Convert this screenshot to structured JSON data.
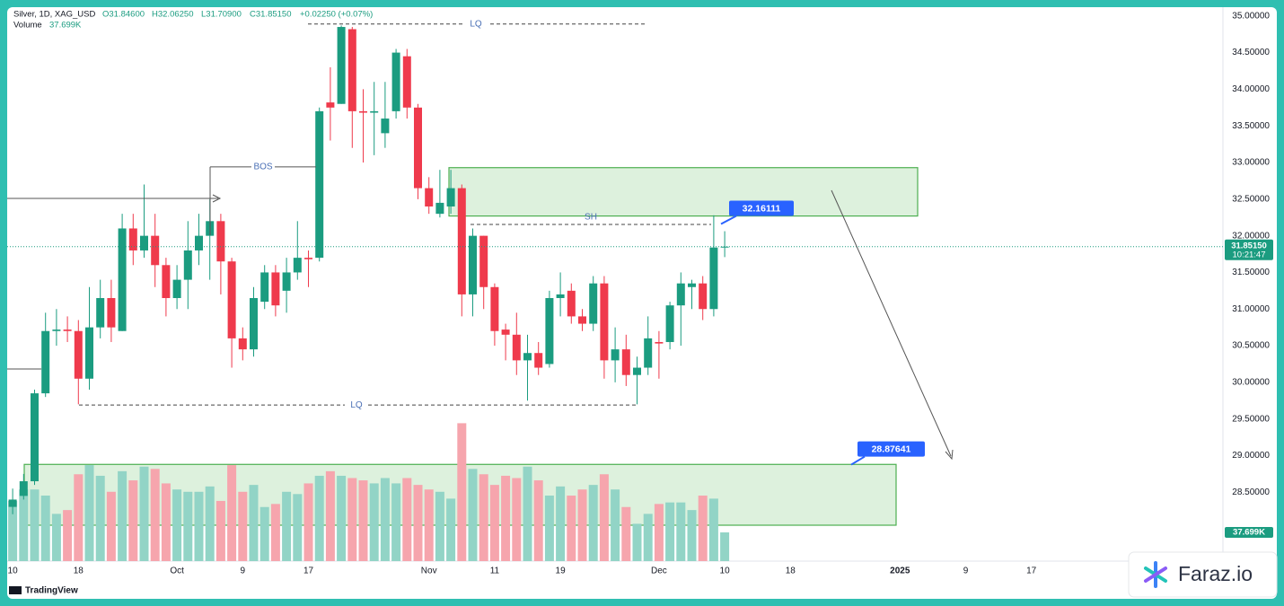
{
  "header": {
    "symbol": "Silver, 1D, XAG_USD",
    "open": "O31.84600",
    "high": "H32.06250",
    "low": "L31.70900",
    "close": "C31.85150",
    "change": "+0.02250 (+0.07%)",
    "volume_name": "Volume"
  },
  "chart_data": {
    "type": "candlestick",
    "categories": [
      "10",
      null,
      null,
      null,
      null,
      null,
      "18",
      null,
      null,
      null,
      null,
      null,
      null,
      null,
      null,
      "Oct",
      null,
      null,
      null,
      null,
      null,
      "9",
      null,
      null,
      null,
      null,
      null,
      "17",
      null,
      null,
      null,
      null,
      null,
      null,
      null,
      null,
      null,
      null,
      "Nov",
      null,
      null,
      null,
      null,
      null,
      "11",
      null,
      null,
      null,
      null,
      null,
      "19",
      null,
      null,
      null,
      null,
      null,
      null,
      null,
      null,
      "Dec",
      null,
      null,
      null,
      null,
      null,
      "10",
      null,
      null,
      null,
      null,
      null,
      "18",
      null,
      null,
      null,
      null,
      null,
      null,
      null,
      null,
      null,
      "2025",
      null,
      null,
      null,
      null,
      null,
      "9",
      null,
      null,
      null,
      null,
      null,
      "17"
    ],
    "open": [
      28.3,
      28.45,
      28.65,
      29.85,
      30.7,
      30.72,
      30.7,
      30.05,
      30.75,
      31.15,
      30.7,
      32.1,
      31.8,
      32.0,
      31.6,
      31.15,
      31.4,
      31.8,
      32.0,
      32.2,
      31.65,
      30.6,
      30.45,
      31.1,
      31.5,
      31.25,
      31.5,
      31.7,
      31.7,
      33.82,
      33.8,
      34.82,
      33.7,
      33.68,
      33.4,
      33.7,
      34.45,
      33.75,
      32.65,
      32.3,
      32.4,
      32.65,
      31.2,
      32.0,
      31.3,
      30.72,
      30.65,
      30.3,
      30.4,
      30.25,
      31.15,
      31.25,
      30.9,
      30.8,
      31.35,
      30.3,
      30.45,
      30.1,
      30.2,
      30.55,
      30.55,
      31.05,
      31.3,
      31.35,
      31.0,
      31.846,
      null,
      null,
      null,
      null,
      null,
      null,
      null,
      null,
      null,
      null,
      null,
      null,
      null,
      null,
      null,
      null,
      null,
      null,
      null,
      null,
      null,
      null,
      null,
      null,
      null,
      null,
      null,
      null
    ],
    "high": [
      28.55,
      28.75,
      29.9,
      30.95,
      31.0,
      30.9,
      30.85,
      31.3,
      31.4,
      31.4,
      32.3,
      32.3,
      32.7,
      32.3,
      31.7,
      31.6,
      32.2,
      32.3,
      32.5,
      32.3,
      31.7,
      30.75,
      31.3,
      31.6,
      31.6,
      31.7,
      32.2,
      31.8,
      33.75,
      34.3,
      34.87,
      34.85,
      34.0,
      34.1,
      34.1,
      34.55,
      34.55,
      33.8,
      32.8,
      32.9,
      32.9,
      32.7,
      32.1,
      32.0,
      31.35,
      30.8,
      30.95,
      30.65,
      30.55,
      31.25,
      31.5,
      31.35,
      31.0,
      31.45,
      31.45,
      30.75,
      30.65,
      30.35,
      30.9,
      30.7,
      31.1,
      31.5,
      31.4,
      31.45,
      32.28,
      32.0625,
      null,
      null,
      null,
      null,
      null,
      null,
      null,
      null,
      null,
      null,
      null,
      null,
      null,
      null,
      null,
      null,
      null,
      null,
      null,
      null,
      null,
      null,
      null,
      null,
      null,
      null,
      null,
      null
    ],
    "low": [
      28.2,
      28.4,
      28.6,
      29.8,
      30.5,
      30.55,
      29.7,
      29.9,
      30.6,
      30.55,
      30.7,
      31.6,
      31.7,
      31.3,
      30.9,
      31.0,
      31.0,
      31.6,
      31.4,
      31.2,
      30.2,
      30.3,
      30.35,
      31.0,
      30.9,
      30.95,
      31.4,
      31.3,
      31.65,
      33.3,
      33.8,
      33.2,
      33.0,
      33.1,
      33.2,
      33.6,
      33.6,
      32.5,
      32.3,
      32.25,
      32.3,
      30.9,
      30.9,
      31.0,
      30.5,
      30.3,
      30.1,
      29.75,
      30.1,
      30.2,
      30.9,
      30.8,
      30.7,
      30.7,
      30.05,
      30.0,
      29.95,
      29.7,
      30.1,
      30.05,
      30.45,
      30.5,
      31.0,
      30.85,
      30.9,
      31.709,
      null,
      null,
      null,
      null,
      null,
      null,
      null,
      null,
      null,
      null,
      null,
      null,
      null,
      null,
      null,
      null,
      null,
      null,
      null,
      null,
      null,
      null,
      null,
      null,
      null,
      null,
      null,
      null
    ],
    "close": [
      28.4,
      28.65,
      29.85,
      30.7,
      30.72,
      30.7,
      30.05,
      30.75,
      31.15,
      30.75,
      32.1,
      31.8,
      32.0,
      31.6,
      31.15,
      31.4,
      31.8,
      32.0,
      32.2,
      31.65,
      30.6,
      30.45,
      31.15,
      31.5,
      31.05,
      31.5,
      31.7,
      31.68,
      33.7,
      33.75,
      34.85,
      33.7,
      33.68,
      33.7,
      33.6,
      34.5,
      33.75,
      32.65,
      32.4,
      32.45,
      32.65,
      31.2,
      32.0,
      31.3,
      30.7,
      30.65,
      30.3,
      30.4,
      30.2,
      31.15,
      31.2,
      30.9,
      30.8,
      31.35,
      30.3,
      30.45,
      30.1,
      30.2,
      30.6,
      30.53,
      31.05,
      31.35,
      31.35,
      31.0,
      31.84,
      31.8515,
      null,
      null,
      null,
      null,
      null,
      null,
      null,
      null,
      null,
      null,
      null,
      null,
      null,
      null,
      null,
      null,
      null,
      null,
      null,
      null,
      null,
      null,
      null,
      null,
      null,
      null,
      null,
      null
    ],
    "volume": {
      "values": [
        79,
        94,
        94,
        86,
        62,
        67,
        114,
        126,
        112,
        91,
        118,
        106,
        124,
        121,
        102,
        94,
        91,
        91,
        98,
        79,
        126,
        91,
        100,
        71,
        75,
        91,
        88,
        102,
        112,
        118,
        112,
        109,
        106,
        102,
        109,
        102,
        109,
        100,
        94,
        91,
        82,
        181,
        121,
        114,
        100,
        112,
        109,
        124,
        106,
        86,
        98,
        86,
        94,
        100,
        114,
        94,
        71,
        49,
        62,
        75,
        77,
        77,
        67,
        86,
        82,
        37.699,
        null,
        null,
        null,
        null,
        null,
        null,
        null,
        null,
        null,
        null,
        null,
        null,
        null,
        null,
        null,
        null,
        null,
        null,
        null,
        null,
        null,
        null,
        null,
        null,
        null,
        null,
        null,
        null
      ],
      "value_labels": [
        null,
        null,
        null,
        null,
        null,
        null,
        null,
        null,
        null,
        null,
        null,
        null,
        null,
        null,
        null,
        null,
        null,
        null,
        null,
        null,
        null,
        null,
        null,
        null,
        null,
        null,
        null,
        null,
        null,
        null,
        null,
        null,
        null,
        null,
        null,
        null,
        null,
        null,
        null,
        null,
        null,
        null,
        null,
        null,
        null,
        null,
        null,
        null,
        null,
        null,
        null,
        null,
        null,
        null,
        null,
        null,
        null,
        null,
        null,
        null,
        null,
        null,
        null,
        null,
        null,
        "37.699K",
        null,
        null,
        null,
        null,
        null,
        null,
        null,
        null,
        null,
        null,
        null,
        null,
        null,
        null,
        null,
        null,
        null,
        null,
        null,
        null,
        null,
        null,
        null,
        null,
        null,
        null,
        null,
        null
      ],
      "ylim": [
        0,
        727
      ]
    },
    "ylim": [
      27.56,
      35.12
    ],
    "yticks": [
      {
        "value": 28.5,
        "label": "28.50000"
      },
      {
        "value": 29,
        "label": "29.00000"
      },
      {
        "value": 29.5,
        "label": "29.50000"
      },
      {
        "value": 30,
        "label": "30.00000"
      },
      {
        "value": 30.5,
        "label": "30.50000"
      },
      {
        "value": 31,
        "label": "31.00000"
      },
      {
        "value": 31.5,
        "label": "31.50000"
      },
      {
        "value": 32,
        "label": "32.00000"
      },
      {
        "value": 32.5,
        "label": "32.50000"
      },
      {
        "value": 33,
        "label": "33.00000"
      },
      {
        "value": 33.5,
        "label": "33.50000"
      },
      {
        "value": 34,
        "label": "34.00000"
      },
      {
        "value": 34.5,
        "label": "34.50000"
      },
      {
        "value": 35,
        "label": "35.00000"
      }
    ],
    "last_price": {
      "value": 31.8515,
      "label": "31.85150"
    },
    "countdown": "10:21:47",
    "up_color": "#1b9c80",
    "down_color": "#ef3a4c",
    "volume_up_color": "#92d4c6",
    "volume_down_color": "#f6a5ad",
    "annotations": [
      {
        "text": "LQ",
        "level": 34.89
      },
      {
        "text": "LQ",
        "level": 29.69
      },
      {
        "text": "SH",
        "level": 32.155
      },
      {
        "text": "BOS",
        "level": 32.94
      }
    ],
    "zones": [
      {
        "low": 32.27,
        "high": 32.93
      },
      {
        "low": 28.05,
        "high": 28.88
      }
    ],
    "badges": [
      32.16111,
      28.87641
    ]
  },
  "footer": {
    "brand": "TradingView",
    "watermark": "Faraz.io"
  }
}
